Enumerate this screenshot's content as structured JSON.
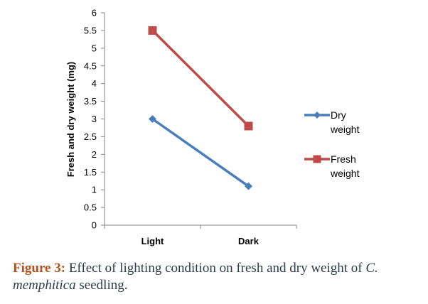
{
  "chart_data": {
    "type": "line",
    "categories": [
      "Light",
      "Dark"
    ],
    "series": [
      {
        "name": "Dry weight",
        "name_lines": [
          "Dry",
          "weight"
        ],
        "values": [
          3.0,
          1.1
        ],
        "color": "#4a7ebb",
        "marker": "diamond"
      },
      {
        "name": "Fresh weight",
        "name_lines": [
          "Fresh",
          "weight"
        ],
        "values": [
          5.5,
          2.8
        ],
        "color": "#be4b48",
        "marker": "square"
      }
    ],
    "ylabel": "Fresh and dry weight (mg)",
    "ylim": [
      0,
      6
    ],
    "yticks": [
      0,
      0.5,
      1,
      1.5,
      2,
      2.5,
      3,
      3.5,
      4,
      4.5,
      5,
      5.5,
      6
    ],
    "grid": false,
    "legend_position": "right"
  },
  "caption": {
    "label": "Figure 3:",
    "text": " Effect of lighting condition on fresh and dry weight of ",
    "species": "C. memphitica",
    "suffix": " seedling."
  }
}
